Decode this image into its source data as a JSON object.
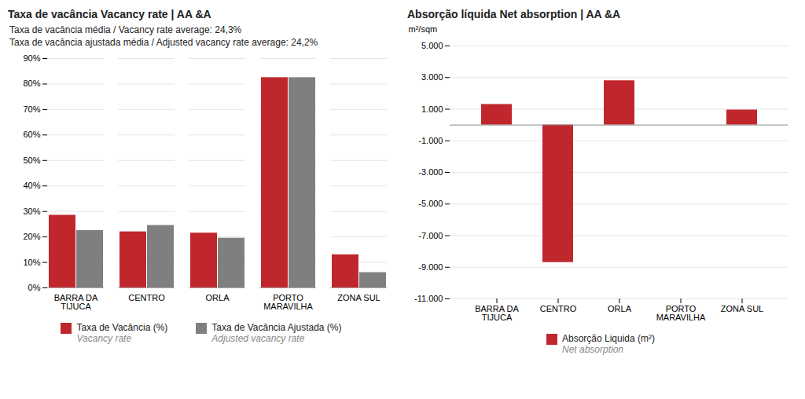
{
  "chart_data": [
    {
      "type": "bar",
      "title": "Taxa de vacância Vacancy rate | AA &A",
      "annotations": [
        "Taxa de vacância média / Vacancy rate average: 24,3%",
        "Taxa de vacância ajustada média / Adjusted vacancy rate average: 24,2%"
      ],
      "categories": [
        "BARRA DA\nTIJUCA",
        "CENTRO",
        "ORLA",
        "PORTO\nMARAVILHA",
        "ZONA SUL"
      ],
      "series": [
        {
          "name": "Taxa de Vacância (%)\nVacancy rate",
          "color": "#C0272D",
          "values": [
            28.5,
            22.0,
            21.5,
            82.5,
            13.0
          ]
        },
        {
          "name": "Taxa de Vacância Ajustada (%)\nAdjusted vacancy rate",
          "color": "#7F7F7F",
          "values": [
            22.5,
            24.5,
            19.5,
            82.5,
            6.0
          ]
        }
      ],
      "ylim": [
        0,
        90
      ],
      "yticks": [
        {
          "value": 0,
          "label": "0%"
        },
        {
          "value": 10,
          "label": "10%"
        },
        {
          "value": 20,
          "label": "20%"
        },
        {
          "value": 30,
          "label": "30%"
        },
        {
          "value": 40,
          "label": "40%"
        },
        {
          "value": 50,
          "label": "50%"
        },
        {
          "value": 60,
          "label": "60%"
        },
        {
          "value": 70,
          "label": "70%"
        },
        {
          "value": 80,
          "label": "80%"
        },
        {
          "value": 90,
          "label": "90%"
        }
      ],
      "grid": true,
      "legend": "bottom"
    },
    {
      "type": "bar",
      "title": "Absorção líquida Net absorption | AA &A",
      "ylabel": "m²/sqm",
      "categories": [
        "BARRA DA\nTIJUCA",
        "CENTRO",
        "ORLA",
        "PORTO\nMARAVILHA",
        "ZONA SUL"
      ],
      "series": [
        {
          "name": "Absorção Liquida (m²)\nNet absorption",
          "color": "#C0272D",
          "values": [
            1300,
            -8700,
            2800,
            0,
            950
          ]
        }
      ],
      "ylim": [
        -11000,
        5000
      ],
      "yticks": [
        {
          "value": -11000,
          "label": "-11.000"
        },
        {
          "value": -9000,
          "label": "-9.000"
        },
        {
          "value": -7000,
          "label": "-7.000"
        },
        {
          "value": -5000,
          "label": "-5.000"
        },
        {
          "value": -3000,
          "label": "-3.000"
        },
        {
          "value": -1000,
          "label": "-1.000"
        },
        {
          "value": 1000,
          "label": "1.000"
        },
        {
          "value": 3000,
          "label": "3.000"
        },
        {
          "value": 5000,
          "label": "5.000"
        }
      ],
      "grid": true,
      "legend": "bottom"
    }
  ]
}
